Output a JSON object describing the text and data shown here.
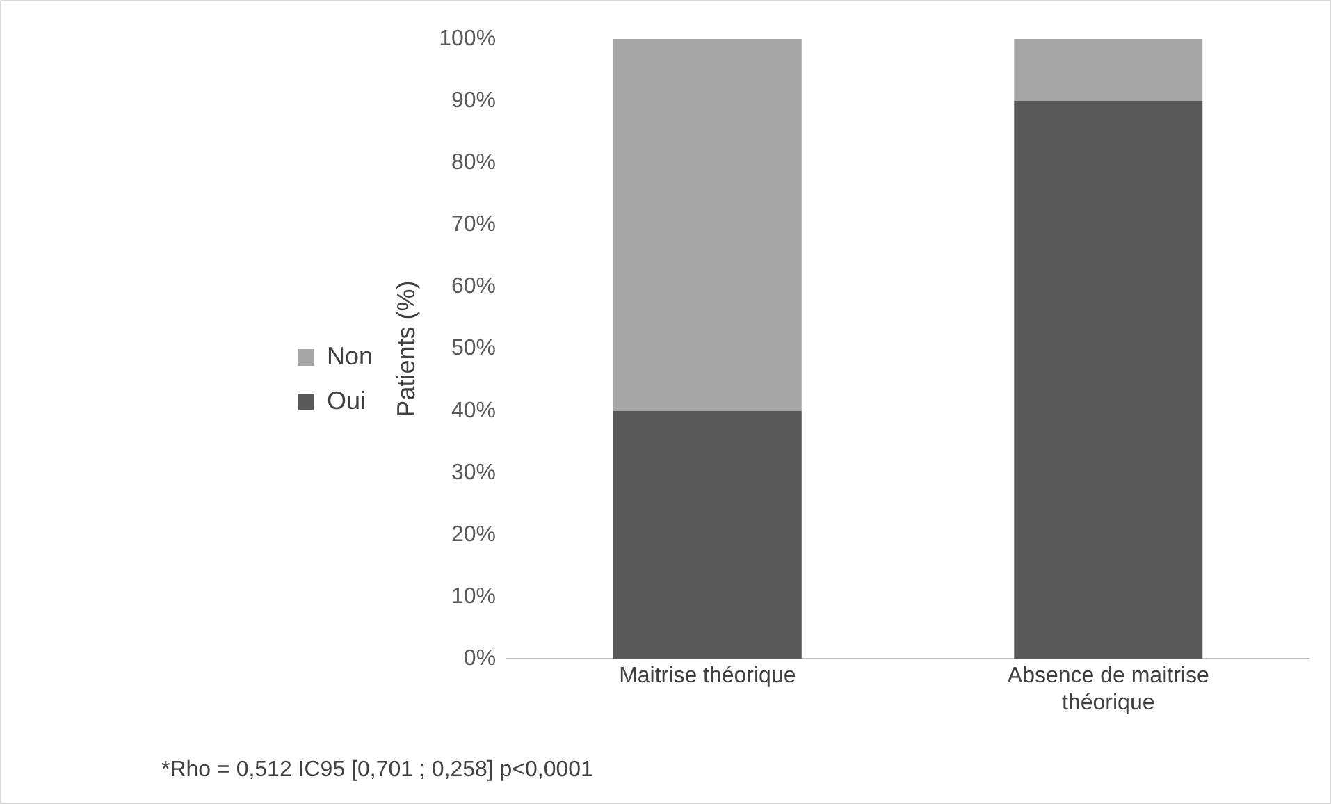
{
  "chart_data": {
    "type": "bar",
    "stacked": true,
    "ylabel": "Patients (%)",
    "categories": [
      "Maitrise théorique",
      "Absence de maitrise théorique"
    ],
    "series": [
      {
        "name": "Oui",
        "color": "#595959",
        "values": [
          40,
          90
        ]
      },
      {
        "name": "Non",
        "color": "#a6a6a6",
        "values": [
          60,
          10
        ]
      }
    ],
    "ylim": [
      0,
      100
    ],
    "yticks": [
      {
        "value": 0,
        "label": "0%"
      },
      {
        "value": 10,
        "label": "10%"
      },
      {
        "value": 20,
        "label": "20%"
      },
      {
        "value": 30,
        "label": "30%"
      },
      {
        "value": 40,
        "label": "40%"
      },
      {
        "value": 50,
        "label": "50%"
      },
      {
        "value": 60,
        "label": "60%"
      },
      {
        "value": 70,
        "label": "70%"
      },
      {
        "value": 80,
        "label": "80%"
      },
      {
        "value": 90,
        "label": "90%"
      },
      {
        "value": 100,
        "label": "100%"
      }
    ],
    "grid": false,
    "legend": "left",
    "annotations": [
      "*Rho = 0,512 IC95 [0,701 ; 0,258] p<0,0001"
    ]
  }
}
